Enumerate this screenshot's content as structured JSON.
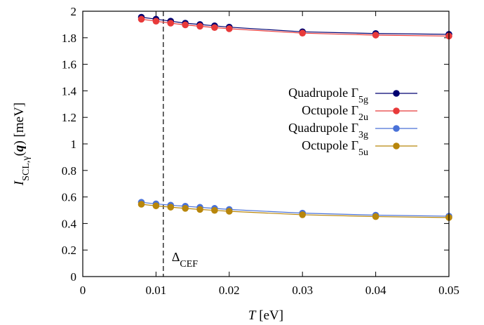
{
  "chart_data": {
    "type": "line",
    "xlabel": {
      "main": "T",
      "unit": " [eV]"
    },
    "ylabel": {
      "main": "I",
      "sub": "SCL,γ",
      "paren_open": "(",
      "bold": "q",
      "paren_close": ")",
      "unit": " [meV]"
    },
    "xlim": [
      0,
      0.05
    ],
    "ylim": [
      0,
      2
    ],
    "xticks": [
      0,
      0.01,
      0.02,
      0.03,
      0.04,
      0.05
    ],
    "xtick_labels": [
      "0",
      "0.01",
      "0.02",
      "0.03",
      "0.04",
      "0.05"
    ],
    "yticks": [
      0,
      0.2,
      0.4,
      0.6,
      0.8,
      1,
      1.2,
      1.4,
      1.6,
      1.8,
      2
    ],
    "ytick_labels": [
      "0",
      "0.2",
      "0.4",
      "0.6",
      "0.8",
      "1",
      "1.2",
      "1.4",
      "1.6",
      "1.8",
      "2"
    ],
    "grid": false,
    "legend_position": "right",
    "x": [
      0.008,
      0.01,
      0.012,
      0.014,
      0.016,
      0.018,
      0.02,
      0.03,
      0.04,
      0.05
    ],
    "series": [
      {
        "name_main": "Quadrupole Γ",
        "name_sub": "5g",
        "color": "#000070",
        "values": [
          1.955,
          1.94,
          1.925,
          1.91,
          1.9,
          1.89,
          1.88,
          1.845,
          1.832,
          1.826
        ]
      },
      {
        "name_main": "Octupole Γ",
        "name_sub": "2u",
        "color": "#e83a3a",
        "values": [
          1.94,
          1.925,
          1.91,
          1.897,
          1.887,
          1.877,
          1.868,
          1.835,
          1.82,
          1.813
        ]
      },
      {
        "name_main": "Quadrupole Γ",
        "name_sub": "3g",
        "color": "#4a72d8",
        "values": [
          0.56,
          0.548,
          0.538,
          0.53,
          0.522,
          0.514,
          0.506,
          0.478,
          0.463,
          0.455
        ]
      },
      {
        "name_main": "Octupole Γ",
        "name_sub": "5u",
        "color": "#b8860b",
        "values": [
          0.545,
          0.533,
          0.523,
          0.514,
          0.506,
          0.499,
          0.492,
          0.466,
          0.452,
          0.445
        ]
      }
    ],
    "annotations": [
      {
        "type": "vline",
        "x": 0.011,
        "style": "dashed",
        "label_main": "Δ",
        "label_sub": "CEF"
      }
    ]
  }
}
